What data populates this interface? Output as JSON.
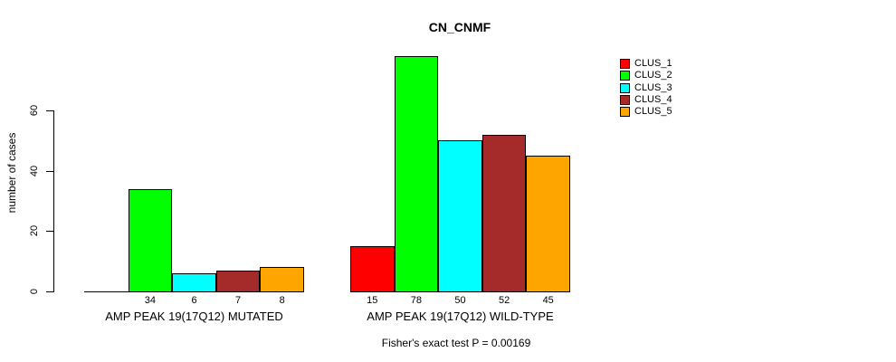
{
  "title": "CN_CNMF",
  "y_axis": {
    "label": "number of cases"
  },
  "legend": {
    "items": [
      {
        "label": "CLUS_1",
        "color": "#FF0000"
      },
      {
        "label": "CLUS_2",
        "color": "#00FF00"
      },
      {
        "label": "CLUS_3",
        "color": "#00FFFF"
      },
      {
        "label": "CLUS_4",
        "color": "#A52A2A"
      },
      {
        "label": "CLUS_5",
        "color": "#FFA500"
      }
    ]
  },
  "footer": "Fisher's exact test P = 0.00169",
  "chart_data": {
    "type": "bar",
    "title": "CN_CNMF",
    "xlabel": "",
    "ylabel": "number of cases",
    "ylim": [
      0,
      80
    ],
    "yticks": [
      0,
      20,
      40,
      60
    ],
    "grid": false,
    "legend_position": "right",
    "series_names": [
      "CLUS_1",
      "CLUS_2",
      "CLUS_3",
      "CLUS_4",
      "CLUS_5"
    ],
    "colors": [
      "#FF0000",
      "#00FF00",
      "#00FFFF",
      "#A52A2A",
      "#FFA500"
    ],
    "groups": [
      {
        "label": "AMP PEAK 19(17Q12) MUTATED",
        "values": [
          0,
          34,
          6,
          7,
          8
        ],
        "bar_labels": [
          "",
          "34",
          "6",
          "7",
          "8"
        ]
      },
      {
        "label": "AMP PEAK 19(17Q12) WILD-TYPE",
        "values": [
          15,
          78,
          50,
          52,
          45
        ],
        "bar_labels": [
          "15",
          "78",
          "50",
          "52",
          "45"
        ]
      }
    ],
    "annotation": "Fisher's exact test P = 0.00169"
  }
}
